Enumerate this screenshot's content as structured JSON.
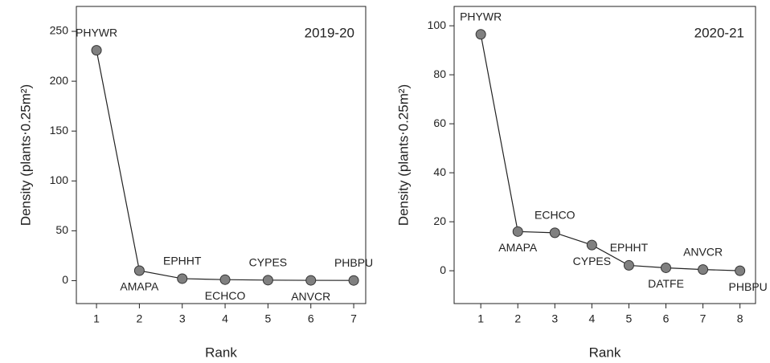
{
  "chart_data": [
    {
      "type": "line",
      "annotation": "2019-20",
      "x_label": "Rank",
      "y_label": "Density (plants⋅0.25m²)",
      "x": [
        1,
        2,
        3,
        4,
        5,
        6,
        7
      ],
      "point_labels": [
        "PHYWR",
        "AMAPA",
        "EPHHT",
        "ECHCO",
        "CYPES",
        "ANVCR",
        "PHBPU"
      ],
      "values": [
        231,
        10,
        2,
        1,
        0.5,
        0.3,
        0.2
      ],
      "color": "#808080",
      "xlim": [
        0.53,
        7.28
      ],
      "ylim": [
        -23,
        275
      ],
      "xticks": [
        1,
        2,
        3,
        4,
        5,
        6,
        7
      ],
      "yticks": [
        0,
        50,
        100,
        150,
        200,
        250
      ]
    },
    {
      "type": "line",
      "annotation": "2020-21",
      "x_label": "Rank",
      "y_label": "Density (plants⋅0.25m²)",
      "x": [
        1,
        2,
        3,
        4,
        5,
        6,
        7,
        8
      ],
      "point_labels": [
        "PHYWR",
        "AMAPA",
        "ECHCO",
        "CYPES",
        "EPHHT",
        "DATFE",
        "ANVCR",
        "PHBPU"
      ],
      "values": [
        96.5,
        16,
        15.5,
        10.5,
        2.2,
        1.2,
        0.5,
        0
      ],
      "color": "#808080",
      "xlim": [
        0.28,
        8.42
      ],
      "ylim": [
        -13.4,
        107.9
      ],
      "xticks": [
        1,
        2,
        3,
        4,
        5,
        6,
        7,
        8
      ],
      "yticks": [
        0,
        20,
        40,
        60,
        80,
        100
      ]
    }
  ]
}
